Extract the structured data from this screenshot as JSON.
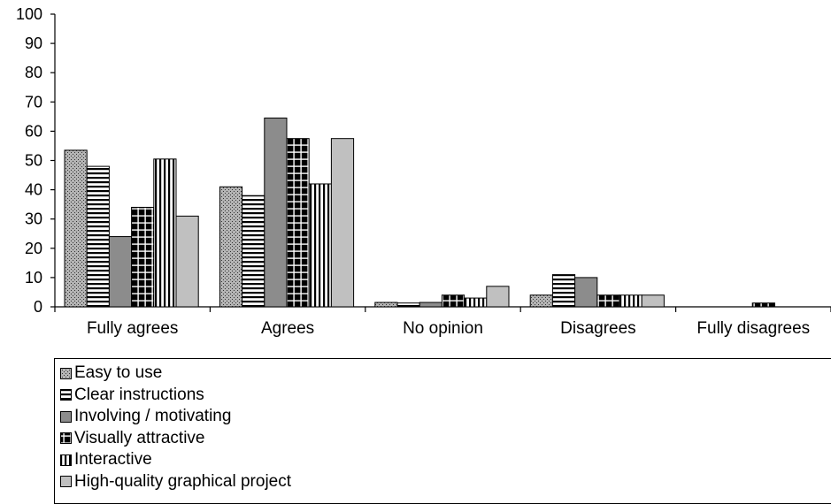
{
  "chart_data": {
    "type": "bar",
    "categories": [
      "Fully agrees",
      "Agrees",
      "No opinion",
      "Disagrees",
      "Fully disagrees"
    ],
    "series": [
      {
        "name": "Easy to use",
        "values": [
          53.5,
          41,
          1.5,
          4,
          0
        ],
        "pattern": "dots",
        "color": "#9a9a9a"
      },
      {
        "name": "Clear instructions",
        "values": [
          48,
          38,
          1.3,
          11,
          0
        ],
        "pattern": "hlines",
        "color": "#ffffff"
      },
      {
        "name": "Involving / motivating",
        "values": [
          24,
          64.5,
          1.5,
          10,
          0
        ],
        "pattern": "solid",
        "color": "#8c8c8c"
      },
      {
        "name": "Visually attractive",
        "values": [
          34,
          57.5,
          4,
          4,
          1.3
        ],
        "pattern": "grid",
        "color": "#000000"
      },
      {
        "name": "Interactive",
        "values": [
          50.5,
          42,
          3,
          4,
          0
        ],
        "pattern": "vlines",
        "color": "#ffffff"
      },
      {
        "name": "High-quality graphical project",
        "values": [
          31,
          57.5,
          7,
          4,
          0
        ],
        "pattern": "solid",
        "color": "#c0c0c0"
      }
    ],
    "ylim": [
      0,
      100
    ],
    "yticks": [
      0,
      10,
      20,
      30,
      40,
      50,
      60,
      70,
      80,
      90,
      100
    ],
    "title": "",
    "xlabel": "",
    "ylabel": "",
    "grid": false,
    "legend_position": "bottom"
  }
}
